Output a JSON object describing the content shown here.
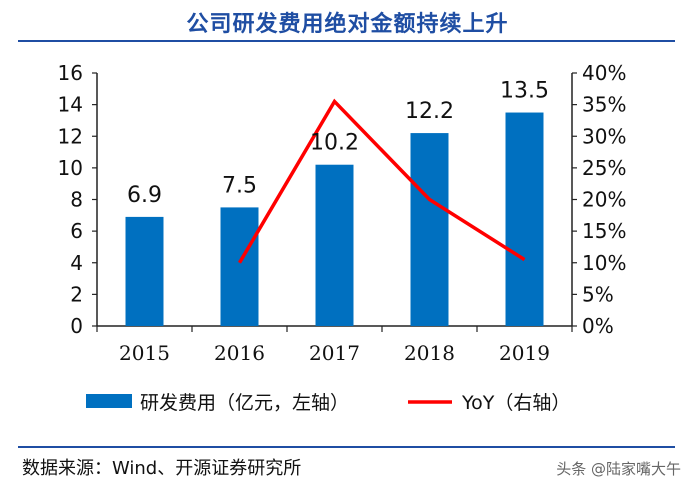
{
  "title": "公司研发费用绝对金额持续上升",
  "source": "数据来源：Wind、开源证券研究所",
  "watermark": "头条 @陆家嘴大午",
  "chart_data": {
    "type": "bar",
    "categories": [
      "2015",
      "2016",
      "2017",
      "2018",
      "2019"
    ],
    "series": [
      {
        "name": "研发费用（亿元，左轴）",
        "type": "bar",
        "values": [
          6.9,
          7.5,
          10.2,
          12.2,
          13.5
        ],
        "color": "#0070c0"
      },
      {
        "name": "YoY（右轴）",
        "type": "line",
        "values": [
          null,
          0.1,
          0.355,
          0.2,
          0.105
        ],
        "color": "#ff0000"
      }
    ],
    "data_labels": [
      "6.9",
      "7.5",
      "10.2",
      "12.2",
      "13.5"
    ],
    "left_axis": {
      "ylim": [
        0,
        16
      ],
      "ticks": [
        "0",
        "2",
        "4",
        "6",
        "8",
        "10",
        "12",
        "14",
        "16"
      ]
    },
    "right_axis": {
      "ylim": [
        0,
        0.4
      ],
      "ticks": [
        "0%",
        "5%",
        "10%",
        "15%",
        "20%",
        "25%",
        "30%",
        "35%",
        "40%"
      ]
    },
    "grid": false,
    "legend_position": "bottom"
  }
}
